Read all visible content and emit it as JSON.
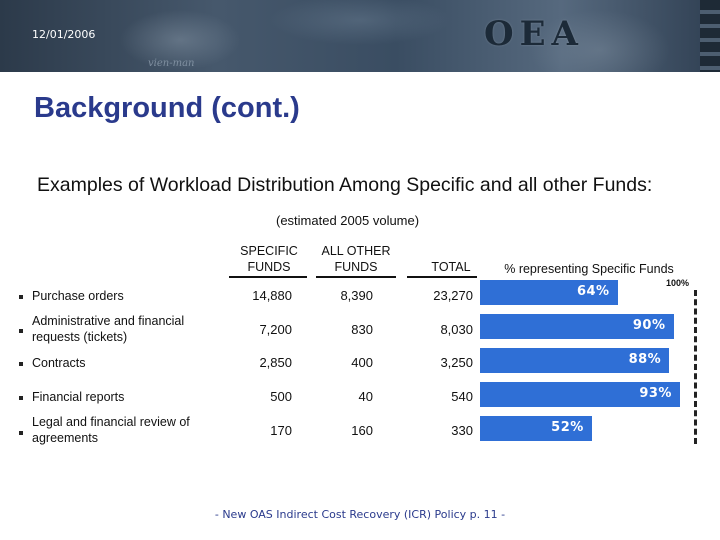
{
  "header": {
    "date": "12/01/2006",
    "logo": "OEA"
  },
  "slide": {
    "title": "Background (cont.)",
    "heading": "Examples of Workload Distribution Among Specific and all other Funds:",
    "subheading": "(estimated 2005 volume)"
  },
  "table": {
    "columns": {
      "specific": [
        "SPECIFIC",
        "FUNDS"
      ],
      "other": [
        "ALL OTHER",
        "FUNDS"
      ],
      "total": "TOTAL",
      "percent": "% representing Specific Funds"
    },
    "rows": [
      {
        "label": [
          "Purchase orders"
        ],
        "specific": "14,880",
        "other": "8,390",
        "total": "23,270",
        "percent_label": "64%",
        "percent": 64
      },
      {
        "label": [
          "Administrative and financial",
          "requests (tickets)"
        ],
        "specific": "7,200",
        "other": "830",
        "total": "8,030",
        "percent_label": "90%",
        "percent": 90
      },
      {
        "label": [
          "Contracts"
        ],
        "specific": "2,850",
        "other": "400",
        "total": "3,250",
        "percent_label": "88%",
        "percent": 88
      },
      {
        "label": [
          "Financial reports"
        ],
        "specific": "500",
        "other": "40",
        "total": "540",
        "percent_label": "93%",
        "percent": 93
      },
      {
        "label": [
          "Legal and financial review of",
          "agreements"
        ],
        "specific": "170",
        "other": "160",
        "total": "330",
        "percent_label": "52%",
        "percent": 52
      }
    ],
    "max_label": "100%"
  },
  "colors": {
    "bar": "#2f6fd6",
    "title": "#2a3a8c"
  },
  "footer": "- New OAS Indirect Cost Recovery (ICR) Policy p. 11 -"
}
